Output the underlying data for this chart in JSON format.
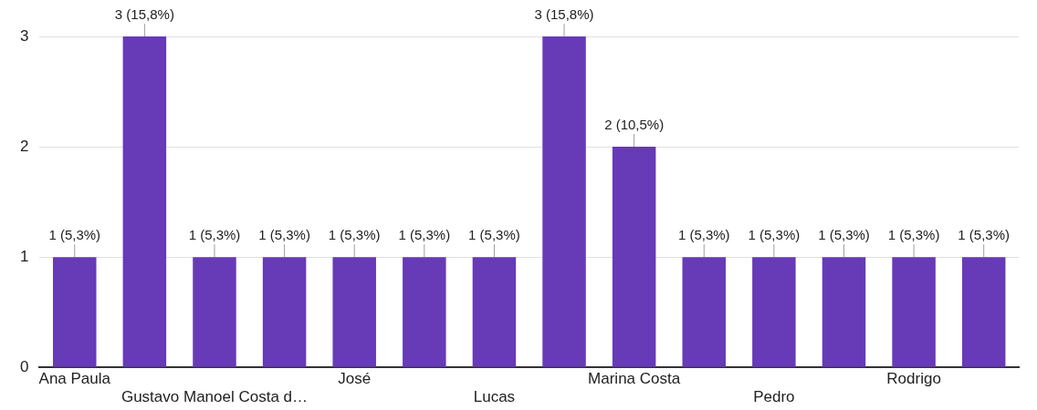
{
  "chart_data": {
    "type": "bar",
    "categories": [
      "Ana Paula",
      null,
      "Gustavo Manoel Costa d…",
      null,
      "José",
      null,
      "Lucas",
      null,
      "Marina Costa",
      null,
      "Pedro",
      null,
      "Rodrigo",
      null
    ],
    "values": [
      1,
      3,
      1,
      1,
      1,
      1,
      1,
      3,
      2,
      1,
      1,
      1,
      1,
      1
    ],
    "value_labels": [
      "1 (5,3%)",
      "3 (15,8%)",
      "1 (5,3%)",
      "1 (5,3%)",
      "1 (5,3%)",
      "1 (5,3%)",
      "1 (5,3%)",
      "3 (15,8%)",
      "2 (10,5%)",
      "1 (5,3%)",
      "1 (5,3%)",
      "1 (5,3%)",
      "1 (5,3%)",
      "1 (5,3%)"
    ],
    "color": "#673ab7",
    "ylim": [
      0,
      3
    ],
    "yticks": [
      0,
      1,
      2,
      3
    ],
    "grid": "y",
    "legend": false
  }
}
